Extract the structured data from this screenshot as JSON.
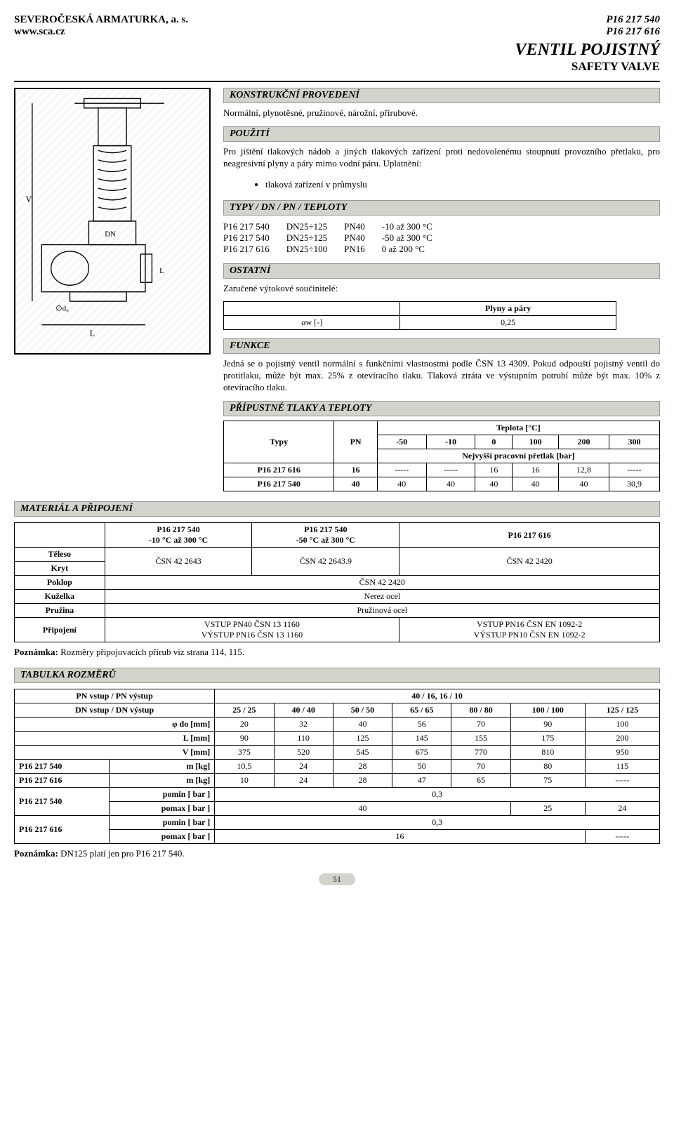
{
  "header": {
    "company": "SEVEROČESKÁ ARMATURKA, a. s.",
    "website": "www.sca.cz",
    "code1": "P16 217 540",
    "code2": "P16 217 616",
    "title": "VENTIL POJISTNÝ",
    "subtitle": "SAFETY VALVE"
  },
  "sections": {
    "konstrukcni": "KONSTRUKČNÍ PROVEDENÍ",
    "pouziti": "POUŽITÍ",
    "typy": "TYPY / DN / PN / TEPLOTY",
    "ostatni": "OSTATNÍ",
    "funkce": "FUNKCE",
    "tlaky": "PŘÍPUSTNÉ TLAKY A TEPLOTY",
    "material": "MATERIÁL A PŘIPOJENÍ",
    "rozmery": "TABULKA ROZMĚRŮ"
  },
  "konstrukcni_text": "Normální, plynotěsné, pružinové, nárožní, přírubové.",
  "pouziti_text": "Pro jištění tlakových nádob a jiných tlakových zařízení proti nedovolenému stoupnutí provozního přetlaku, pro neagresivní plyny a páry mimo vodní páru. Uplatnění:",
  "pouziti_bullet": "tlaková zařízení v průmyslu",
  "types": [
    [
      "P16 217 540",
      "DN25÷125",
      "PN40",
      "-10 až 300 °C"
    ],
    [
      "P16 217 540",
      "DN25÷125",
      "PN40",
      "-50 až 300 °C"
    ],
    [
      "P16 217 616",
      "DN25÷100",
      "PN16",
      "0 až 200 °C"
    ]
  ],
  "ostatni_text": "Zaručené výtokové součinitelé:",
  "alpha": {
    "header": "Plyny a páry",
    "label": "αw [-]",
    "value": "0,25"
  },
  "funkce_text": "Jedná se o pojistný ventil normální s funkčními vlastnostmi podle ČSN 13 4309. Pokud odpouští pojistný ventil do protitlaku, může být max. 25% z otevíracího tlaku. Tlaková ztráta ve výstupním potrubí může být max. 10% z otevíracího tlaku.",
  "temp": {
    "header_typy": "Typy",
    "header_pn": "PN",
    "header_teplota": "Teplota [°C]",
    "header_nejvyssi": "Nejvyšší pracovní přetlak [bar]",
    "cols": [
      "-50",
      "-10",
      "0",
      "100",
      "200",
      "300"
    ],
    "rows": [
      {
        "typ": "P16 217 616",
        "pn": "16",
        "vals": [
          "-----",
          "-----",
          "16",
          "16",
          "12,8",
          "-----"
        ]
      },
      {
        "typ": "P16 217 540",
        "pn": "40",
        "vals": [
          "40",
          "40",
          "40",
          "40",
          "40",
          "30,9"
        ]
      }
    ]
  },
  "mat": {
    "cols": [
      {
        "h1": "P16 217 540",
        "h2": "-10 °C až 300 °C"
      },
      {
        "h1": "P16 217 540",
        "h2": "-50 °C až 300 °C"
      },
      {
        "h1": "P16 217 616",
        "h2": ""
      }
    ],
    "rows": [
      {
        "label": "Těleso",
        "cells": [
          "ČSN 42 2643",
          "ČSN 42 2643.9",
          "ČSN 42 2420"
        ],
        "rowspan": true
      },
      {
        "label": "Kryt",
        "cells": []
      },
      {
        "label": "Poklop",
        "cells": [
          "ČSN 42 2420"
        ],
        "span": 3
      },
      {
        "label": "Kuželka",
        "cells": [
          "Nerez ocel"
        ],
        "span": 3
      },
      {
        "label": "Pružina",
        "cells": [
          "Pružinová ocel"
        ],
        "span": 3
      },
      {
        "label": "Připojení",
        "cells": [
          "VSTUP PN40 ČSN 13 1160\nVÝSTUP PN16 ČSN 13 1160",
          "VSTUP PN16 ČSN EN 1092-2\nVÝSTUP PN10 ČSN EN 1092-2"
        ],
        "span2": [
          2,
          1
        ]
      }
    ]
  },
  "note1_lbl": "Poznámka:",
  "note1_txt": "Rozměry připojovacích přírub viz strana 114, 115.",
  "dim": {
    "header_pn": "PN vstup / PN výstup",
    "header_pn_val": "40 / 16,   16 / 10",
    "header_dn": "DN vstup / DN výstup",
    "dn_cols": [
      "25 / 25",
      "40 / 40",
      "50 / 50",
      "65 / 65",
      "80 / 80",
      "100 / 100",
      "125 / 125"
    ],
    "rows": [
      {
        "lbl": "φ do [mm]",
        "vals": [
          "20",
          "32",
          "40",
          "56",
          "70",
          "90",
          "100"
        ]
      },
      {
        "lbl": "L [mm]",
        "vals": [
          "90",
          "110",
          "125",
          "145",
          "155",
          "175",
          "200"
        ]
      },
      {
        "lbl": "V [mm]",
        "vals": [
          "375",
          "520",
          "545",
          "675",
          "770",
          "810",
          "950"
        ]
      },
      {
        "lbl": "m [kg]",
        "pre": "P16 217 540",
        "vals": [
          "10,5",
          "24",
          "28",
          "50",
          "70",
          "80",
          "115"
        ]
      },
      {
        "lbl": "m [kg]",
        "pre": "P16 217 616",
        "vals": [
          "10",
          "24",
          "28",
          "47",
          "65",
          "75",
          "-----"
        ]
      }
    ],
    "prows": [
      {
        "pre": "P16 217 540",
        "sub": [
          {
            "lbl": "pomin [ bar ]",
            "vals": [
              "0,3"
            ],
            "span": 7
          },
          {
            "lbl": "pomax [ bar ]",
            "vals": [
              "40",
              "25",
              "24"
            ],
            "spans": [
              5,
              1,
              1
            ]
          }
        ]
      },
      {
        "pre": "P16 217 616",
        "sub": [
          {
            "lbl": "pomin [ bar ]",
            "vals": [
              "0,3"
            ],
            "span": 7
          },
          {
            "lbl": "pomax [ bar ]",
            "vals": [
              "16",
              "-----"
            ],
            "spans": [
              6,
              1
            ]
          }
        ]
      }
    ]
  },
  "note2_lbl": "Poznámka:",
  "note2_txt": "DN125 platí jen pro P16 217 540.",
  "page_number": "51",
  "colors": {
    "bar_bg": "#d3d3cc",
    "border": "#000000"
  }
}
